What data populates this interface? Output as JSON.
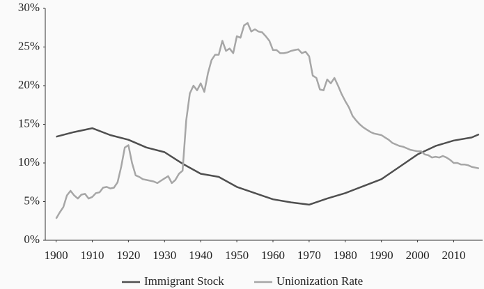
{
  "chart_data": {
    "type": "line",
    "xlim": [
      1897,
      2018
    ],
    "ylim": [
      0,
      30
    ],
    "xticks": [
      1900,
      1910,
      1920,
      1930,
      1940,
      1950,
      1960,
      1970,
      1980,
      1990,
      2000,
      2010
    ],
    "yticks": [
      {
        "value": 0,
        "label": "0%"
      },
      {
        "value": 5,
        "label": "5%"
      },
      {
        "value": 10,
        "label": "10%"
      },
      {
        "value": 15,
        "label": "15%"
      },
      {
        "value": 20,
        "label": "20%"
      },
      {
        "value": 25,
        "label": "25%"
      },
      {
        "value": 30,
        "label": "30%"
      }
    ],
    "legend": "bottom",
    "series": [
      {
        "name": "Immigrant Stock",
        "color": "#4f4f4f",
        "x": [
          1900,
          1905,
          1910,
          1915,
          1920,
          1925,
          1930,
          1935,
          1940,
          1945,
          1950,
          1955,
          1960,
          1965,
          1970,
          1975,
          1980,
          1985,
          1990,
          1995,
          2000,
          2005,
          2010,
          2015,
          2017
        ],
        "values": [
          13.4,
          14.0,
          14.5,
          13.6,
          13.0,
          12.0,
          11.4,
          9.9,
          8.6,
          8.2,
          6.9,
          6.1,
          5.3,
          4.9,
          4.6,
          5.4,
          6.1,
          7.0,
          7.9,
          9.5,
          11.1,
          12.2,
          12.9,
          13.3,
          13.7
        ]
      },
      {
        "name": "Unionization Rate",
        "color": "#a6a6a6",
        "x": [
          1900,
          1901,
          1902,
          1903,
          1904,
          1905,
          1906,
          1907,
          1908,
          1909,
          1910,
          1911,
          1912,
          1913,
          1914,
          1915,
          1916,
          1917,
          1918,
          1919,
          1920,
          1921,
          1922,
          1923,
          1924,
          1925,
          1926,
          1927,
          1928,
          1929,
          1930,
          1931,
          1932,
          1933,
          1934,
          1935,
          1936,
          1937,
          1938,
          1939,
          1940,
          1941,
          1942,
          1943,
          1944,
          1945,
          1946,
          1947,
          1948,
          1949,
          1950,
          1951,
          1952,
          1953,
          1954,
          1955,
          1956,
          1957,
          1958,
          1959,
          1960,
          1961,
          1962,
          1963,
          1964,
          1965,
          1966,
          1967,
          1968,
          1969,
          1970,
          1971,
          1972,
          1973,
          1974,
          1975,
          1976,
          1977,
          1978,
          1979,
          1980,
          1981,
          1982,
          1983,
          1984,
          1985,
          1986,
          1987,
          1988,
          1989,
          1990,
          1991,
          1992,
          1993,
          1994,
          1995,
          1996,
          1997,
          1998,
          1999,
          2000,
          2001,
          2002,
          2003,
          2004,
          2005,
          2006,
          2007,
          2008,
          2009,
          2010,
          2011,
          2012,
          2013,
          2014,
          2015,
          2016,
          2017
        ],
        "values": [
          2.8,
          3.6,
          4.3,
          5.8,
          6.4,
          5.8,
          5.4,
          5.9,
          6.0,
          5.4,
          5.6,
          6.1,
          6.2,
          6.8,
          6.9,
          6.7,
          6.8,
          7.5,
          9.5,
          12.0,
          12.3,
          10.0,
          8.4,
          8.2,
          7.9,
          7.8,
          7.7,
          7.6,
          7.4,
          7.7,
          8.0,
          8.3,
          7.4,
          7.8,
          8.6,
          9.0,
          15.5,
          19.0,
          20.0,
          19.4,
          20.3,
          19.2,
          21.6,
          23.3,
          24.0,
          24.0,
          25.8,
          24.5,
          24.8,
          24.2,
          26.4,
          26.2,
          27.8,
          28.1,
          27.0,
          27.3,
          27.0,
          26.9,
          26.4,
          25.8,
          24.6,
          24.6,
          24.2,
          24.2,
          24.3,
          24.5,
          24.6,
          24.7,
          24.2,
          24.4,
          23.8,
          21.3,
          21.0,
          19.5,
          19.4,
          20.8,
          20.3,
          21.0,
          20.0,
          18.9,
          18.0,
          17.2,
          16.1,
          15.5,
          15.0,
          14.6,
          14.3,
          14.0,
          13.8,
          13.7,
          13.6,
          13.3,
          13.0,
          12.6,
          12.4,
          12.2,
          12.1,
          11.9,
          11.7,
          11.6,
          11.5,
          11.5,
          11.1,
          11.0,
          10.7,
          10.8,
          10.7,
          10.9,
          10.7,
          10.4,
          10.0,
          10.0,
          9.8,
          9.8,
          9.7,
          9.5,
          9.4,
          9.3
        ]
      }
    ]
  }
}
